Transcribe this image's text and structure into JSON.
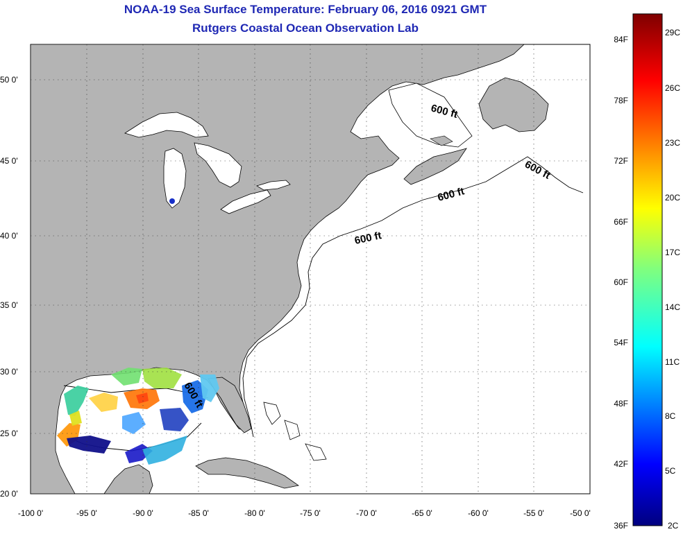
{
  "title": "NOAA-19 Sea Surface Temperature:  February 06, 2016 0921 GMT",
  "subtitle": "Rutgers Coastal Ocean Observation Lab",
  "axes": {
    "lat_ticks": [
      "20 0'",
      "25 0'",
      "30 0'",
      "35 0'",
      "40 0'",
      "45 0'",
      "50 0'"
    ],
    "lon_ticks": [
      "-100 0'",
      "-95 0'",
      "-90 0'",
      "-85 0'",
      "-80 0'",
      "-75 0'",
      "-70 0'",
      "-65 0'",
      "-60 0'",
      "-55 0'",
      "-50 0'"
    ],
    "lat_range": [
      20,
      52.5
    ],
    "lon_range": [
      -100,
      -50
    ],
    "grid": true
  },
  "contour_labels": [
    "600 ft",
    "600 ft",
    "600 ft",
    "600 ft",
    "600 ft"
  ],
  "colorbar": {
    "fahrenheit_labels": [
      "84F",
      "78F",
      "72F",
      "66F",
      "60F",
      "54F",
      "48F",
      "42F",
      "36F"
    ],
    "celsius_labels": [
      "29C",
      "26C",
      "23C",
      "20C",
      "17C",
      "14C",
      "11C",
      "8C",
      "5C",
      "2C"
    ],
    "range_c": [
      2,
      30
    ]
  },
  "colors": {
    "title": "#1f28b4",
    "land": "#b4b4b4",
    "ocean": "#ffffff"
  }
}
